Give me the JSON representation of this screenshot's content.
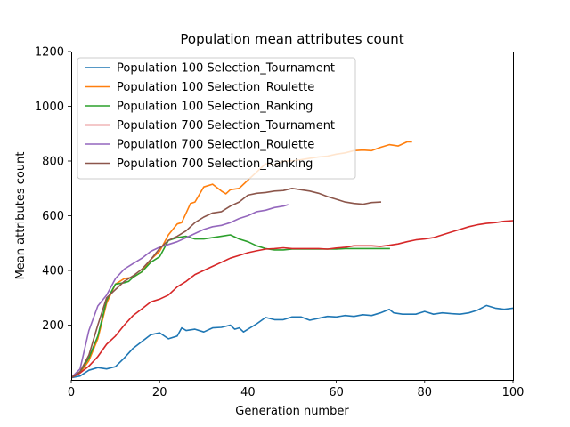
{
  "chart_data": {
    "type": "line",
    "title": "Population mean attributes count",
    "xlabel": "Generation number",
    "ylabel": "Mean attributes count",
    "xlim": [
      0,
      100
    ],
    "ylim": [
      0,
      1200
    ],
    "xticks": [
      0,
      20,
      40,
      60,
      80,
      100
    ],
    "yticks": [
      200,
      400,
      600,
      800,
      1000,
      1200
    ],
    "grid": false,
    "legend_position": "upper-left",
    "series": [
      {
        "name": "Population 100 Selection_Tournament",
        "color": "#1f77b4",
        "points": [
          [
            0,
            8
          ],
          [
            2,
            14
          ],
          [
            4,
            35
          ],
          [
            6,
            45
          ],
          [
            8,
            40
          ],
          [
            10,
            48
          ],
          [
            12,
            80
          ],
          [
            14,
            115
          ],
          [
            16,
            140
          ],
          [
            18,
            165
          ],
          [
            20,
            172
          ],
          [
            22,
            150
          ],
          [
            24,
            160
          ],
          [
            25,
            190
          ],
          [
            26,
            180
          ],
          [
            28,
            185
          ],
          [
            30,
            175
          ],
          [
            32,
            190
          ],
          [
            34,
            192
          ],
          [
            36,
            200
          ],
          [
            37,
            185
          ],
          [
            38,
            190
          ],
          [
            39,
            175
          ],
          [
            40,
            185
          ],
          [
            42,
            205
          ],
          [
            44,
            228
          ],
          [
            46,
            220
          ],
          [
            48,
            220
          ],
          [
            50,
            230
          ],
          [
            52,
            230
          ],
          [
            54,
            218
          ],
          [
            56,
            225
          ],
          [
            58,
            232
          ],
          [
            60,
            230
          ],
          [
            62,
            235
          ],
          [
            64,
            232
          ],
          [
            66,
            238
          ],
          [
            68,
            235
          ],
          [
            70,
            245
          ],
          [
            72,
            258
          ],
          [
            73,
            245
          ],
          [
            75,
            240
          ],
          [
            78,
            240
          ],
          [
            80,
            250
          ],
          [
            82,
            240
          ],
          [
            84,
            245
          ],
          [
            86,
            242
          ],
          [
            88,
            240
          ],
          [
            90,
            245
          ],
          [
            92,
            255
          ],
          [
            94,
            272
          ],
          [
            96,
            262
          ],
          [
            98,
            258
          ],
          [
            100,
            262
          ]
        ]
      },
      {
        "name": "Population 100 Selection_Roulette",
        "color": "#ff7f0e",
        "points": [
          [
            0,
            8
          ],
          [
            2,
            25
          ],
          [
            4,
            70
          ],
          [
            6,
            150
          ],
          [
            8,
            280
          ],
          [
            10,
            350
          ],
          [
            12,
            370
          ],
          [
            14,
            375
          ],
          [
            16,
            395
          ],
          [
            18,
            440
          ],
          [
            20,
            470
          ],
          [
            22,
            530
          ],
          [
            24,
            570
          ],
          [
            25,
            575
          ],
          [
            26,
            610
          ],
          [
            27,
            645
          ],
          [
            28,
            650
          ],
          [
            30,
            705
          ],
          [
            32,
            715
          ],
          [
            34,
            690
          ],
          [
            35,
            680
          ],
          [
            36,
            695
          ],
          [
            38,
            700
          ],
          [
            40,
            730
          ],
          [
            42,
            760
          ],
          [
            44,
            790
          ],
          [
            46,
            785
          ],
          [
            48,
            800
          ],
          [
            50,
            800
          ],
          [
            52,
            805
          ],
          [
            54,
            810
          ],
          [
            56,
            815
          ],
          [
            58,
            818
          ],
          [
            60,
            825
          ],
          [
            62,
            830
          ],
          [
            64,
            838
          ],
          [
            66,
            840
          ],
          [
            68,
            838
          ],
          [
            70,
            850
          ],
          [
            72,
            860
          ],
          [
            74,
            855
          ],
          [
            76,
            870
          ],
          [
            77,
            870
          ]
        ]
      },
      {
        "name": "Population 100 Selection_Ranking",
        "color": "#2ca02c",
        "points": [
          [
            0,
            8
          ],
          [
            2,
            30
          ],
          [
            4,
            80
          ],
          [
            6,
            160
          ],
          [
            8,
            290
          ],
          [
            10,
            350
          ],
          [
            12,
            355
          ],
          [
            13,
            360
          ],
          [
            14,
            375
          ],
          [
            16,
            395
          ],
          [
            18,
            430
          ],
          [
            20,
            450
          ],
          [
            22,
            510
          ],
          [
            24,
            520
          ],
          [
            26,
            525
          ],
          [
            28,
            515
          ],
          [
            30,
            515
          ],
          [
            32,
            520
          ],
          [
            34,
            525
          ],
          [
            36,
            530
          ],
          [
            38,
            515
          ],
          [
            40,
            505
          ],
          [
            42,
            490
          ],
          [
            44,
            480
          ],
          [
            46,
            475
          ],
          [
            48,
            475
          ],
          [
            50,
            478
          ],
          [
            52,
            478
          ],
          [
            56,
            478
          ],
          [
            60,
            478
          ],
          [
            62,
            480
          ],
          [
            64,
            480
          ],
          [
            66,
            480
          ],
          [
            68,
            480
          ],
          [
            70,
            480
          ],
          [
            72,
            480
          ]
        ]
      },
      {
        "name": "Population 700 Selection_Tournament",
        "color": "#d62728",
        "points": [
          [
            0,
            8
          ],
          [
            2,
            25
          ],
          [
            4,
            50
          ],
          [
            6,
            85
          ],
          [
            8,
            130
          ],
          [
            10,
            160
          ],
          [
            12,
            200
          ],
          [
            14,
            235
          ],
          [
            16,
            260
          ],
          [
            18,
            285
          ],
          [
            20,
            295
          ],
          [
            22,
            310
          ],
          [
            24,
            340
          ],
          [
            26,
            360
          ],
          [
            28,
            385
          ],
          [
            30,
            400
          ],
          [
            32,
            415
          ],
          [
            34,
            430
          ],
          [
            36,
            445
          ],
          [
            38,
            455
          ],
          [
            40,
            465
          ],
          [
            42,
            472
          ],
          [
            44,
            478
          ],
          [
            46,
            480
          ],
          [
            48,
            483
          ],
          [
            50,
            480
          ],
          [
            52,
            480
          ],
          [
            56,
            480
          ],
          [
            58,
            478
          ],
          [
            60,
            482
          ],
          [
            62,
            485
          ],
          [
            64,
            490
          ],
          [
            66,
            490
          ],
          [
            68,
            490
          ],
          [
            70,
            488
          ],
          [
            72,
            492
          ],
          [
            74,
            497
          ],
          [
            76,
            505
          ],
          [
            78,
            512
          ],
          [
            80,
            515
          ],
          [
            82,
            520
          ],
          [
            84,
            530
          ],
          [
            86,
            540
          ],
          [
            88,
            550
          ],
          [
            90,
            560
          ],
          [
            92,
            567
          ],
          [
            94,
            572
          ],
          [
            96,
            575
          ],
          [
            98,
            580
          ],
          [
            100,
            582
          ]
        ]
      },
      {
        "name": "Population 700 Selection_Roulette",
        "color": "#9467bd",
        "points": [
          [
            0,
            8
          ],
          [
            2,
            40
          ],
          [
            4,
            180
          ],
          [
            6,
            270
          ],
          [
            8,
            310
          ],
          [
            10,
            370
          ],
          [
            12,
            405
          ],
          [
            14,
            425
          ],
          [
            16,
            445
          ],
          [
            18,
            470
          ],
          [
            20,
            485
          ],
          [
            22,
            495
          ],
          [
            24,
            505
          ],
          [
            26,
            520
          ],
          [
            28,
            535
          ],
          [
            30,
            550
          ],
          [
            32,
            560
          ],
          [
            34,
            565
          ],
          [
            36,
            575
          ],
          [
            38,
            590
          ],
          [
            40,
            600
          ],
          [
            42,
            615
          ],
          [
            44,
            620
          ],
          [
            46,
            630
          ],
          [
            48,
            635
          ],
          [
            49,
            640
          ]
        ]
      },
      {
        "name": "Population 700 Selection_Ranking",
        "color": "#8c564b",
        "points": [
          [
            0,
            8
          ],
          [
            2,
            30
          ],
          [
            4,
            90
          ],
          [
            6,
            200
          ],
          [
            8,
            300
          ],
          [
            10,
            330
          ],
          [
            12,
            360
          ],
          [
            14,
            380
          ],
          [
            16,
            405
          ],
          [
            18,
            440
          ],
          [
            20,
            480
          ],
          [
            22,
            510
          ],
          [
            24,
            525
          ],
          [
            26,
            545
          ],
          [
            28,
            575
          ],
          [
            30,
            595
          ],
          [
            32,
            610
          ],
          [
            34,
            615
          ],
          [
            36,
            635
          ],
          [
            38,
            650
          ],
          [
            40,
            675
          ],
          [
            42,
            682
          ],
          [
            44,
            685
          ],
          [
            46,
            690
          ],
          [
            48,
            692
          ],
          [
            50,
            700
          ],
          [
            52,
            695
          ],
          [
            54,
            690
          ],
          [
            56,
            682
          ],
          [
            58,
            670
          ],
          [
            60,
            660
          ],
          [
            62,
            650
          ],
          [
            64,
            645
          ],
          [
            66,
            642
          ],
          [
            68,
            648
          ],
          [
            70,
            650
          ]
        ]
      }
    ]
  }
}
